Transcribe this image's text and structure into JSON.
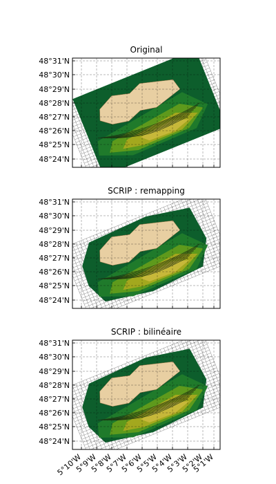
{
  "figure": {
    "x_ticks": [
      "5°10'W",
      "5°9'W",
      "5°8'W",
      "5°7'W",
      "5°6'W",
      "5°5'W",
      "5°4'W",
      "5°3'W",
      "5°2'W",
      "5°1'W"
    ],
    "y_ticks": [
      "48°24'N",
      "48°25'N",
      "48°26'N",
      "48°27'N",
      "48°28'N",
      "48°29'N",
      "48°30'N",
      "48°31'N"
    ]
  },
  "chart_data": [
    {
      "type": "heatmap",
      "title": "Original",
      "x_range_deg": [
        -5.18,
        -5.0
      ],
      "y_range_deg": [
        48.395,
        48.52
      ],
      "grid": true,
      "land_color": "#e8cfa2",
      "colormap": [
        "#0d5e2c",
        "#1f7a2b",
        "#5e9a1c",
        "#a3a81e",
        "#c7b83a"
      ]
    },
    {
      "type": "heatmap",
      "title": "SCRIP : remapping",
      "x_range_deg": [
        -5.18,
        -5.0
      ],
      "y_range_deg": [
        48.395,
        48.52
      ],
      "grid": true,
      "land_color": "#e8cfa2",
      "colormap": [
        "#0d5e2c",
        "#1f7a2b",
        "#5e9a1c",
        "#a3a81e",
        "#c7b83a"
      ]
    },
    {
      "type": "heatmap",
      "title": "SCRIP : bilinéaire",
      "x_range_deg": [
        -5.18,
        -5.0
      ],
      "y_range_deg": [
        48.395,
        48.52
      ],
      "grid": true,
      "land_color": "#e8cfa2",
      "colormap": [
        "#0d5e2c",
        "#1f7a2b",
        "#5e9a1c",
        "#a3a81e",
        "#c7b83a"
      ]
    }
  ]
}
